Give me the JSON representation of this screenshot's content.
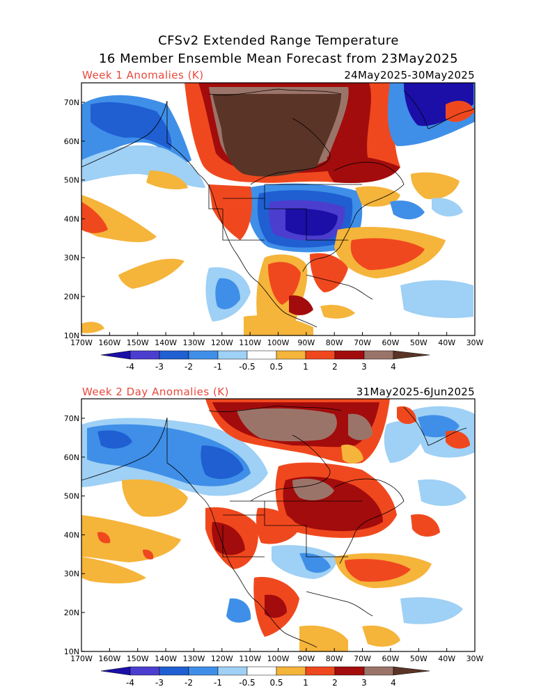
{
  "header": {
    "title_line1": "CFSv2 Extended Range Temperature",
    "title_line2": "16 Member Ensemble Mean Forecast from 23May2025"
  },
  "panels": [
    {
      "label": "Week 1 Anomalies (K)",
      "date_range": "24May2025-30May2025"
    },
    {
      "label": "Week 2 Day Anomalies (K)",
      "date_range": "31May2025-6Jun2025"
    }
  ],
  "axes": {
    "lat_labels": [
      "70N",
      "60N",
      "50N",
      "40N",
      "30N",
      "20N",
      "10N"
    ],
    "lon_labels": [
      "170W",
      "160W",
      "150W",
      "140W",
      "130W",
      "120W",
      "110W",
      "100W",
      "90W",
      "80W",
      "70W",
      "60W",
      "50W",
      "40W",
      "30W"
    ]
  },
  "colorbar": {
    "tick_labels": [
      "-4",
      "-3",
      "-2",
      "-1",
      "-0.5",
      "0.5",
      "1",
      "2",
      "3",
      "4"
    ],
    "colors": [
      "#1b0fa8",
      "#4b3ecf",
      "#1f5fd2",
      "#3f8fe8",
      "#9fd0f5",
      "#ffffff",
      "#f5b43a",
      "#f0481e",
      "#a30c0c",
      "#9b7469",
      "#5a3427"
    ]
  },
  "map": {
    "color_min": "#1b0fa8",
    "color_blue2": "#4b3ecf",
    "color_blue3": "#1f5fd2",
    "color_blue4": "#3f8fe8",
    "color_lightblue": "#9fd0f5",
    "color_orange": "#f5b43a",
    "color_red": "#f0481e",
    "color_darkred": "#a30c0c",
    "color_brownlight": "#9b7469",
    "color_brown": "#5a3427"
  }
}
